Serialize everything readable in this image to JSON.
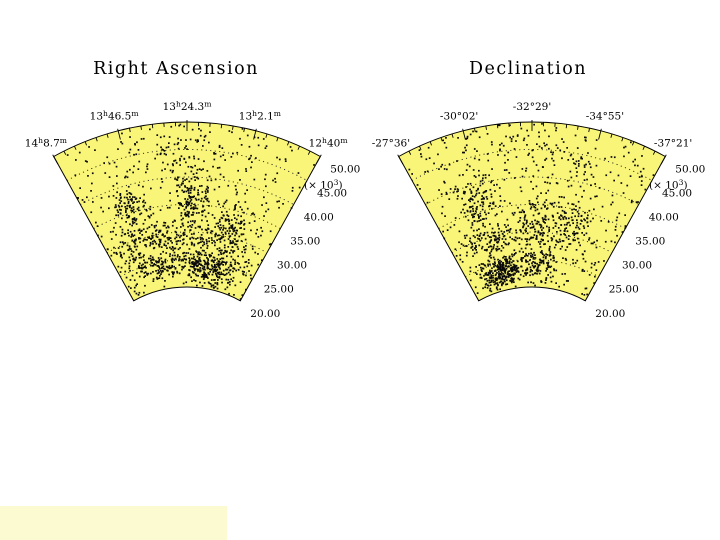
{
  "slide": {
    "background": "#ffffff"
  },
  "colors": {
    "fan_fill": "#F9F578",
    "outline": "#000000",
    "point": "#0a0a0a",
    "grid_dots": "#1a1a1a",
    "footer_rect": "#FCFAD0"
  },
  "footer": {
    "highlight_rect_color": "#FCFAD0"
  },
  "chart_data": [
    {
      "type": "scatter",
      "subtype": "cone-diagram",
      "title": "Right Ascension",
      "angular_axis": {
        "labels_text": [
          "14h8.7m",
          "13h46.5m",
          "13h24.3m",
          "13h2.1m",
          "12h40m"
        ],
        "labels_parts": [
          [
            {
              "t": "14"
            },
            {
              "t": "h",
              "sup": true
            },
            {
              "t": "8.7"
            },
            {
              "t": "m",
              "sup": true
            }
          ],
          [
            {
              "t": "13"
            },
            {
              "t": "h",
              "sup": true
            },
            {
              "t": "46.5"
            },
            {
              "t": "m",
              "sup": true
            }
          ],
          [
            {
              "t": "13"
            },
            {
              "t": "h",
              "sup": true
            },
            {
              "t": "24.3"
            },
            {
              "t": "m",
              "sup": true
            }
          ],
          [
            {
              "t": "13"
            },
            {
              "t": "h",
              "sup": true
            },
            {
              "t": "2.1"
            },
            {
              "t": "m",
              "sup": true
            }
          ],
          [
            {
              "t": "12"
            },
            {
              "t": "h",
              "sup": true
            },
            {
              "t": "40"
            },
            {
              "t": "m",
              "sup": true
            }
          ]
        ],
        "minor_ticks_between_majors": 5
      },
      "radial_axis": {
        "unit_text": "(x 10^3)",
        "unit_parts": [
          {
            "t": "(× 10"
          },
          {
            "t": "3",
            "sup": true
          },
          {
            "t": ")"
          }
        ],
        "tick_labels": [
          "50.00",
          "45.00",
          "40.00",
          "35.00",
          "30.00",
          "25.00",
          "20.00"
        ],
        "tick_values_thousands": [
          50,
          45,
          40,
          35,
          30,
          25,
          20
        ],
        "range_thousands": [
          20,
          50
        ],
        "grid_values_thousands": [
          25,
          30,
          35,
          40,
          45
        ],
        "grid_style": "dotted"
      },
      "points": {
        "estimated": true,
        "total_approx": 1480,
        "seed": 1337,
        "background": {
          "n": 430,
          "t_range": [
            -1,
            1
          ],
          "v_range": [
            20,
            50
          ]
        },
        "clusters": [
          {
            "t": 0.35,
            "v": 24.0,
            "sdT": 0.22,
            "sdV": 1.5,
            "n": 240
          },
          {
            "t": -0.35,
            "v": 24.5,
            "sdT": 0.26,
            "sdV": 1.4,
            "n": 170
          },
          {
            "t": 0.0,
            "v": 29.0,
            "sdT": 0.55,
            "sdV": 1.1,
            "n": 150
          },
          {
            "t": 0.05,
            "v": 35.0,
            "sdT": 0.09,
            "sdV": 3.4,
            "n": 170
          },
          {
            "t": -0.6,
            "v": 36.0,
            "sdT": 0.1,
            "sdV": 1.6,
            "n": 85
          },
          {
            "t": -0.5,
            "v": 31.0,
            "sdT": 0.18,
            "sdV": 1.4,
            "n": 70
          },
          {
            "t": 0.5,
            "v": 31.5,
            "sdT": 0.12,
            "sdV": 1.8,
            "n": 90
          },
          {
            "t": -0.15,
            "v": 44.5,
            "sdT": 0.3,
            "sdV": 2.6,
            "n": 75
          }
        ]
      }
    },
    {
      "type": "scatter",
      "subtype": "cone-diagram",
      "title": "Declination",
      "angular_axis": {
        "labels_text": [
          "-27°36'",
          "-30°02'",
          "-32°29'",
          "-34°55'",
          "-37°21'"
        ],
        "labels_parts": [
          [
            {
              "t": "-27°36'"
            }
          ],
          [
            {
              "t": "-30°02'"
            }
          ],
          [
            {
              "t": "-32°29'"
            }
          ],
          [
            {
              "t": "-34°55'"
            }
          ],
          [
            {
              "t": "-37°21'"
            }
          ]
        ],
        "minor_ticks_between_majors": 5
      },
      "radial_axis": {
        "unit_text": "(x 10^3)",
        "unit_parts": [
          {
            "t": "(× 10"
          },
          {
            "t": "3",
            "sup": true
          },
          {
            "t": ")"
          }
        ],
        "tick_labels": [
          "50.00",
          "45.00",
          "40.00",
          "35.00",
          "30.00",
          "25.00",
          "20.00"
        ],
        "tick_values_thousands": [
          50,
          45,
          40,
          35,
          30,
          25,
          20
        ],
        "range_thousands": [
          20,
          50
        ],
        "grid_values_thousands": [
          25,
          30,
          35,
          40,
          45
        ],
        "grid_style": "dotted"
      },
      "points": {
        "estimated": true,
        "total_approx": 1350,
        "seed": 4242,
        "background": {
          "n": 430,
          "t_range": [
            -1,
            1
          ],
          "v_range": [
            20,
            50
          ]
        },
        "clusters": [
          {
            "t": -0.45,
            "v": 23.5,
            "sdT": 0.18,
            "sdV": 1.5,
            "n": 300
          },
          {
            "t": 0.1,
            "v": 24.5,
            "sdT": 0.17,
            "sdV": 1.6,
            "n": 110
          },
          {
            "t": -0.35,
            "v": 29.5,
            "sdT": 0.33,
            "sdV": 1.2,
            "n": 140
          },
          {
            "t": -0.55,
            "v": 36.0,
            "sdT": 0.12,
            "sdV": 2.0,
            "n": 110
          },
          {
            "t": 0.0,
            "v": 32.5,
            "sdT": 0.12,
            "sdV": 2.0,
            "n": 80
          },
          {
            "t": 0.45,
            "v": 32.0,
            "sdT": 0.13,
            "sdV": 2.2,
            "n": 100
          },
          {
            "t": 0.05,
            "v": 44.0,
            "sdT": 0.33,
            "sdV": 2.7,
            "n": 80
          }
        ]
      }
    }
  ]
}
